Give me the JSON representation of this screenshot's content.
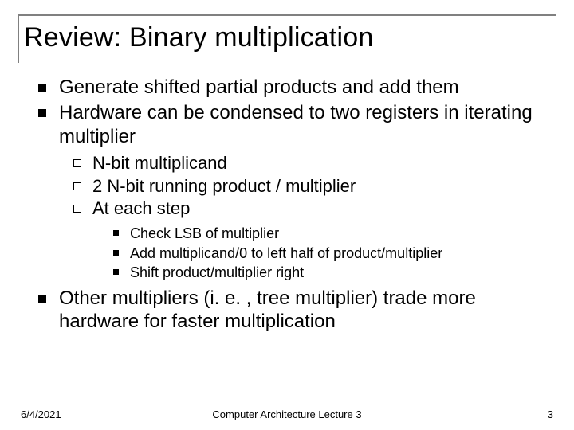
{
  "title": "Review: Binary multiplication",
  "bullets": {
    "l1_1": "Generate shifted partial products and add them",
    "l1_2": "Hardware can be condensed to two registers in iterating multiplier",
    "l2_1": "N-bit multiplicand",
    "l2_2": "2 N-bit running product / multiplier",
    "l2_3": "At each step",
    "l3_1": "Check LSB of multiplier",
    "l3_2": "Add multiplicand/0 to left half of product/multiplier",
    "l3_3": "Shift product/multiplier right",
    "l1_3": "Other multipliers (i. e. , tree multiplier) trade more hardware for faster multiplication"
  },
  "footer": {
    "date": "6/4/2021",
    "center": "Computer Architecture Lecture 3",
    "page": "3"
  },
  "colors": {
    "border": "#808080",
    "text": "#000000",
    "background": "#ffffff"
  },
  "fonts": {
    "title_size": 34,
    "l1_size": 24,
    "l2_size": 22,
    "l3_size": 18,
    "footer_size": 13
  }
}
